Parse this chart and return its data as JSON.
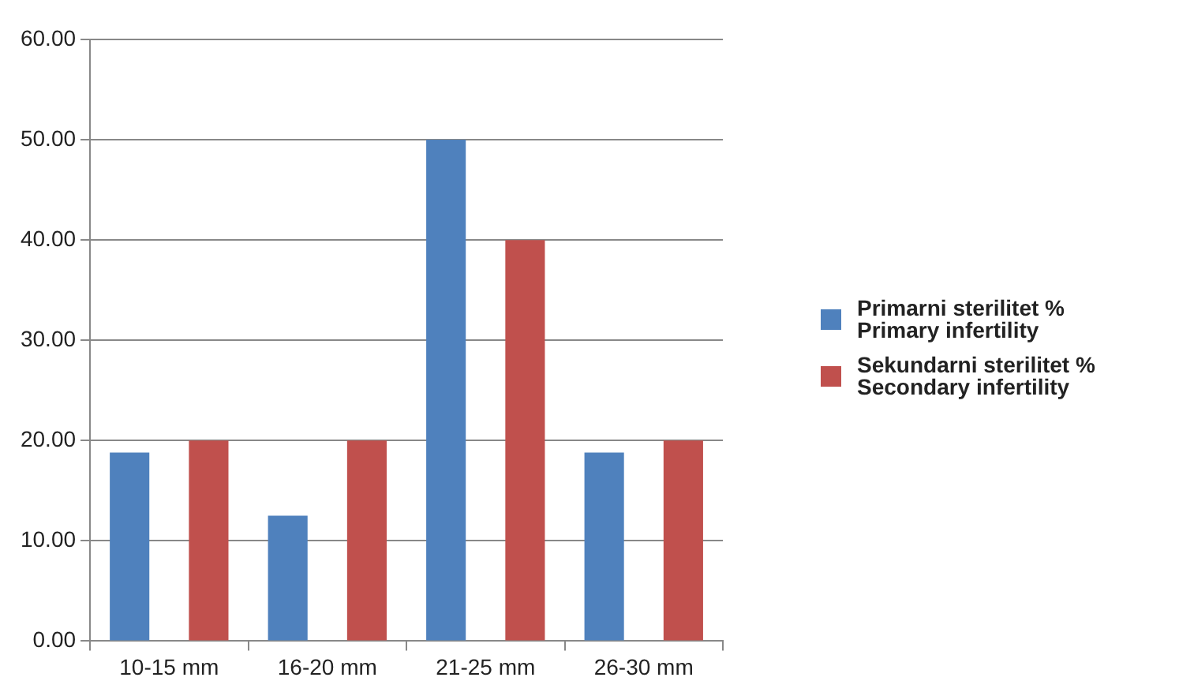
{
  "chart_data": {
    "type": "bar",
    "categories": [
      "10-15 mm",
      "16-20 mm",
      "21-25 mm",
      "26-30 mm"
    ],
    "series": [
      {
        "name": "Primarni sterilitet %\nPrimary infertility",
        "color": "#4f81bd",
        "values": [
          18.8,
          12.5,
          50,
          18.8
        ]
      },
      {
        "name": "Sekundarni sterilitet %\nSecondary infertility",
        "color": "#c0504d",
        "values": [
          20,
          20,
          40,
          20
        ]
      }
    ],
    "ylim": [
      0,
      60
    ],
    "yticks": [
      {
        "value": 0,
        "label": "0.00"
      },
      {
        "value": 10,
        "label": "10.00"
      },
      {
        "value": 20,
        "label": "20.00"
      },
      {
        "value": 30,
        "label": "30.00"
      },
      {
        "value": 40,
        "label": "40.00"
      },
      {
        "value": 50,
        "label": "50.00"
      },
      {
        "value": 60,
        "label": "60.00"
      }
    ],
    "grid": "y",
    "legend": "right"
  }
}
